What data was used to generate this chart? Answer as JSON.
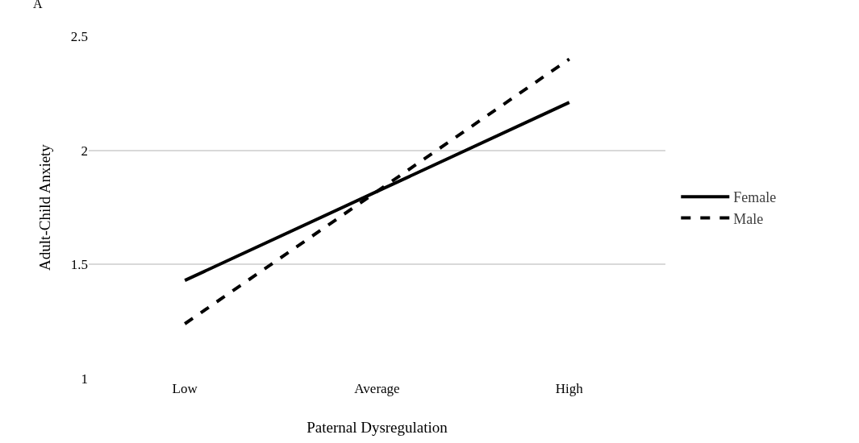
{
  "chart_data": {
    "type": "line",
    "xlabel": "Paternal Dysregulation",
    "ylabel": "Adult-Child Anxiety",
    "annotations": [
      "A"
    ],
    "categories": [
      "Low",
      "Average",
      "High"
    ],
    "series": [
      {
        "name": "Female",
        "color": "#000000",
        "line_style": "solid",
        "values": [
          1.43,
          1.82,
          2.21
        ]
      },
      {
        "name": "Male",
        "color": "#000000",
        "line_style": "dashed",
        "values": [
          1.24,
          1.82,
          2.4
        ]
      }
    ],
    "ylim": [
      1,
      2.5
    ],
    "yticks": [
      1,
      1.5,
      2,
      2.5
    ],
    "grid": "y",
    "legend": "right",
    "marker": "none"
  }
}
